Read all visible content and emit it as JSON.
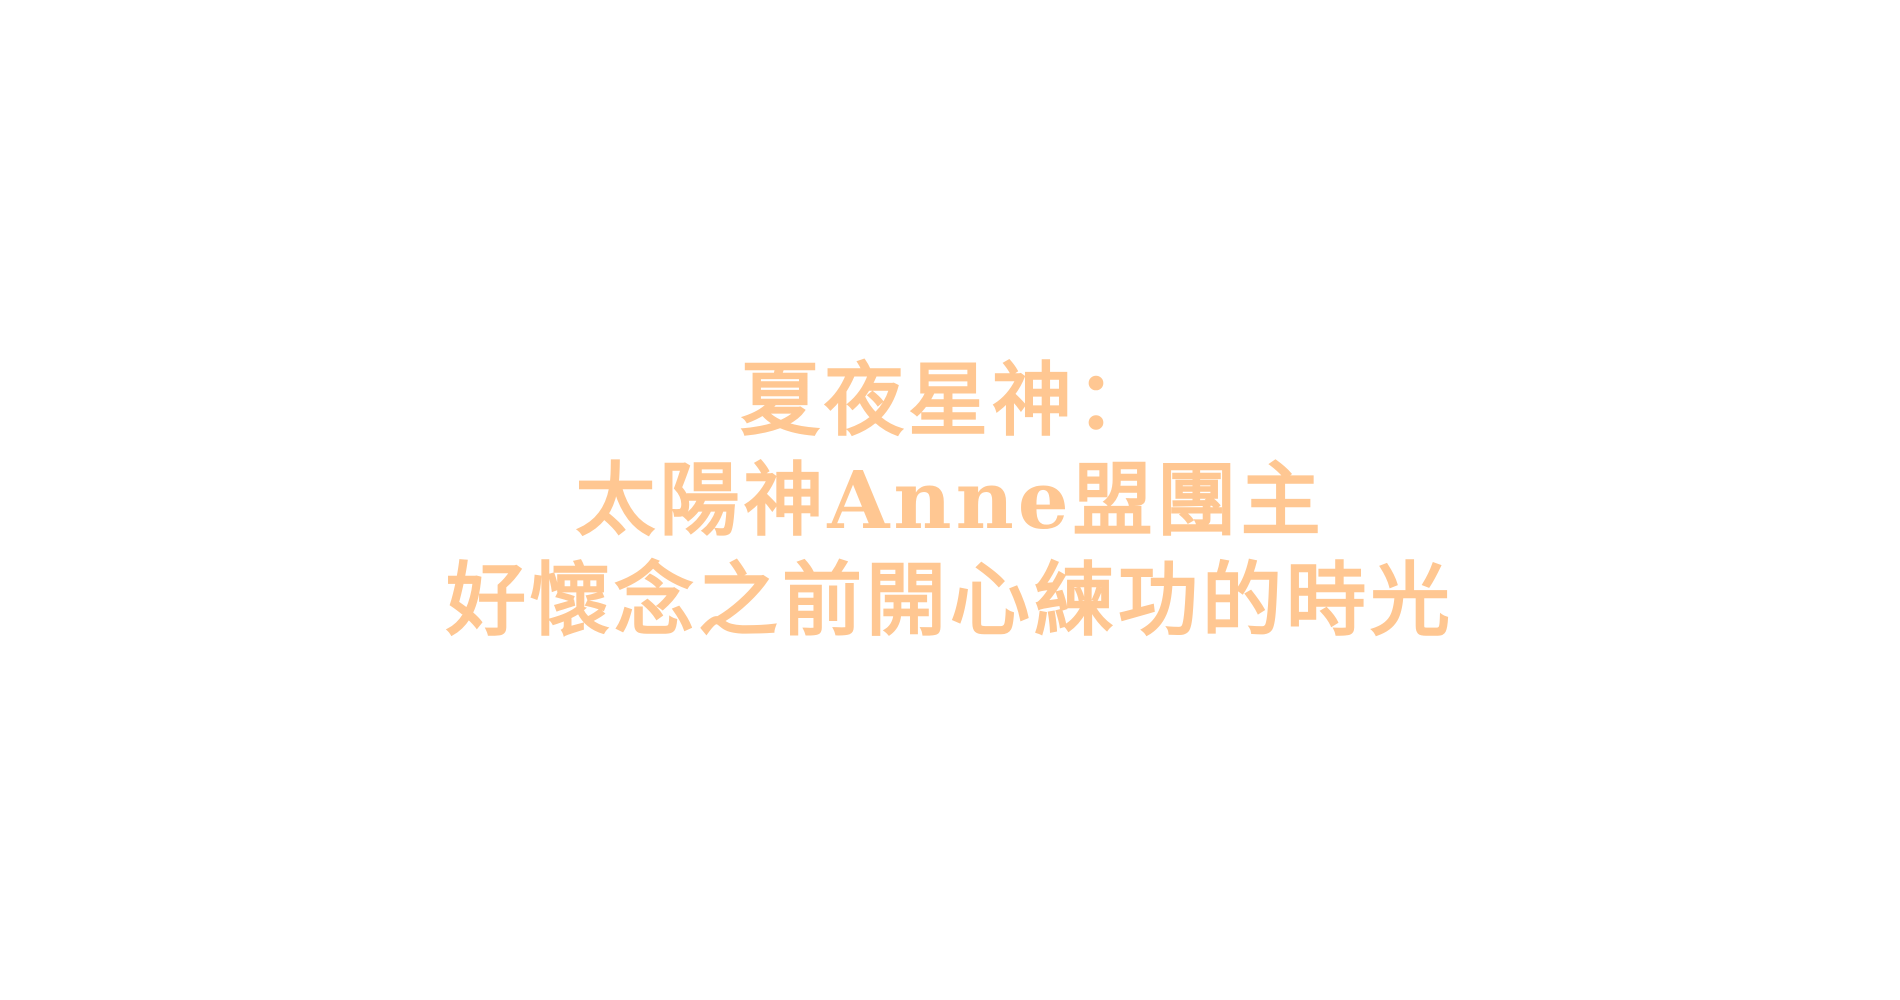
{
  "message": {
    "line1": "夏夜星神：",
    "line2": "太陽神Anne盟團主",
    "line3": "好懷念之前開心練功的時光"
  },
  "colors": {
    "background": "#FFFFFF",
    "text": "#FFC792"
  }
}
